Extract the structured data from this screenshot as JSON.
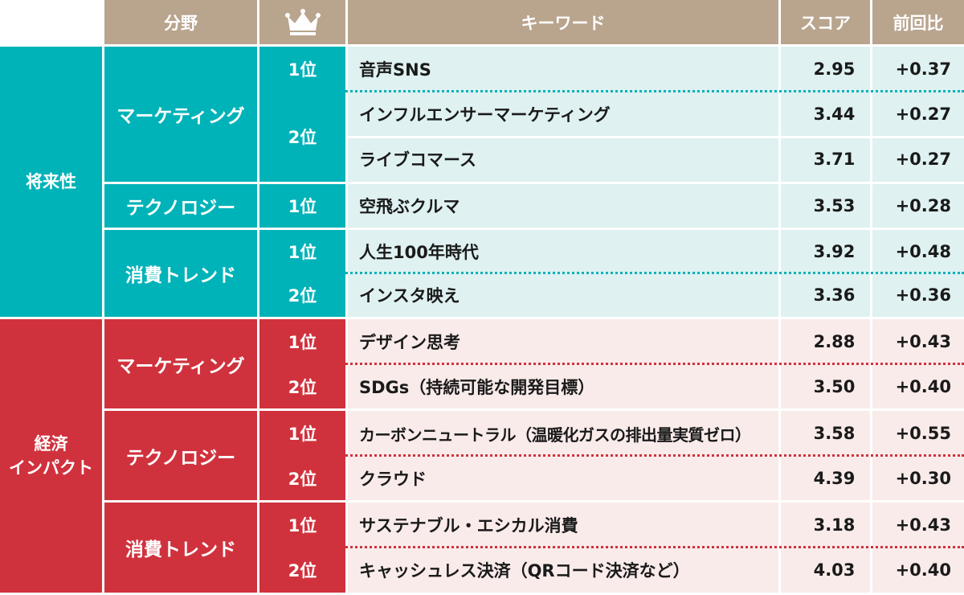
{
  "header": {
    "field": "分野",
    "rank_icon": "crown-icon",
    "keyword": "キーワード",
    "score": "スコア",
    "change": "前回比"
  },
  "colors": {
    "header": "#b9a48e",
    "teal": "#00b3b8",
    "teal_light": "#dff1f1",
    "red": "#d0323d",
    "red_light": "#f9ebea"
  },
  "groups": [
    {
      "name_lines": [
        "将来性"
      ],
      "fields": [
        {
          "name": "マーケティング",
          "rows": [
            {
              "rank": "1位",
              "keyword": "音声SNS",
              "score": "2.95",
              "change": "+0.37"
            },
            {
              "rank": "2位",
              "keyword": "インフルエンサーマーケティング",
              "score": "3.44",
              "change": "+0.27"
            },
            {
              "rank": "",
              "keyword": "ライブコマース",
              "score": "3.71",
              "change": "+0.27"
            }
          ]
        },
        {
          "name": "テクノロジー",
          "rows": [
            {
              "rank": "1位",
              "keyword": "空飛ぶクルマ",
              "score": "3.53",
              "change": "+0.28"
            }
          ]
        },
        {
          "name": "消費トレンド",
          "rows": [
            {
              "rank": "1位",
              "keyword": "人生100年時代",
              "score": "3.92",
              "change": "+0.48"
            },
            {
              "rank": "2位",
              "keyword": "インスタ映え",
              "score": "3.36",
              "change": "+0.36"
            }
          ]
        }
      ]
    },
    {
      "name_lines": [
        "経済",
        "インパクト"
      ],
      "fields": [
        {
          "name": "マーケティング",
          "rows": [
            {
              "rank": "1位",
              "keyword": "デザイン思考",
              "score": "2.88",
              "change": "+0.43"
            },
            {
              "rank": "2位",
              "keyword": "SDGs（持続可能な開発目標）",
              "score": "3.50",
              "change": "+0.40"
            }
          ]
        },
        {
          "name": "テクノロジー",
          "rows": [
            {
              "rank": "1位",
              "keyword": "カーボンニュートラル（温暖化ガスの排出量実質ゼロ）",
              "score": "3.58",
              "change": "+0.55"
            },
            {
              "rank": "2位",
              "keyword": "クラウド",
              "score": "4.39",
              "change": "+0.30"
            }
          ]
        },
        {
          "name": "消費トレンド",
          "rows": [
            {
              "rank": "1位",
              "keyword": "サステナブル・エシカル消費",
              "score": "3.18",
              "change": "+0.43"
            },
            {
              "rank": "2位",
              "keyword": "キャッシュレス決済（QRコード決済など）",
              "score": "4.03",
              "change": "+0.40"
            }
          ]
        }
      ]
    }
  ]
}
